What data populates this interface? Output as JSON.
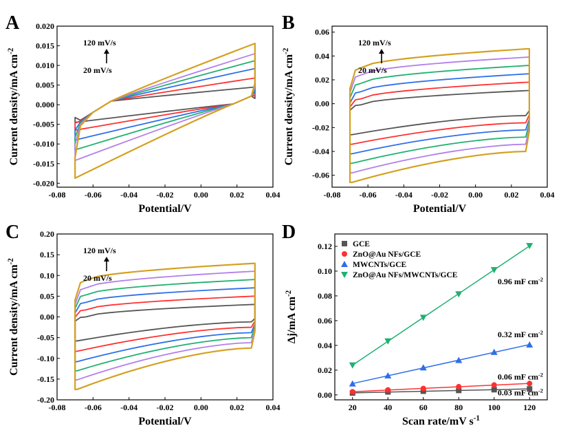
{
  "chart_data": [
    {
      "panel": "A",
      "type": "line",
      "xlabel": "Potential/V",
      "ylabel": "Current density/mA cm",
      "ylabel_sup": "-2",
      "xlim": [
        -0.08,
        0.04
      ],
      "ylim": [
        -0.021,
        0.02
      ],
      "xticks": [
        -0.08,
        -0.06,
        -0.04,
        -0.02,
        0.0,
        0.02,
        0.04
      ],
      "xtick_labels": [
        "-0.08",
        "-0.06",
        "-0.04",
        "-0.02",
        "0.00",
        "0.02",
        "0.04"
      ],
      "yticks": [
        -0.02,
        -0.015,
        -0.01,
        -0.005,
        0.0,
        0.005,
        0.01,
        0.015,
        0.02
      ],
      "ytick_labels": [
        "-0.020",
        "-0.015",
        "-0.010",
        "-0.005",
        "0.000",
        "0.005",
        "0.010",
        "0.015",
        "0.020"
      ],
      "shape": "diagonal",
      "x_range": [
        -0.07,
        0.03
      ],
      "cross_points": [
        -0.05,
        0.018
      ],
      "annotations": {
        "top": "120 mV/s",
        "bottom": "20 mV/s"
      },
      "series": [
        {
          "color": "#555555",
          "lower_left": -0.0045,
          "upper_right": 0.0045
        },
        {
          "color": "#ff3030",
          "lower_left": -0.0065,
          "upper_right": 0.0068
        },
        {
          "color": "#2e6fe8",
          "lower_left": -0.009,
          "upper_right": 0.0092
        },
        {
          "color": "#20b070",
          "lower_left": -0.0115,
          "upper_right": 0.0112
        },
        {
          "color": "#b37feb",
          "lower_left": -0.0142,
          "upper_right": 0.013
        },
        {
          "color": "#d4a020",
          "lower_left": -0.0187,
          "upper_right": 0.0156
        }
      ]
    },
    {
      "panel": "B",
      "type": "line",
      "xlabel": "Potential/V",
      "ylabel": "Current density/mA cm",
      "ylabel_sup": "-2",
      "xlim": [
        -0.08,
        0.04
      ],
      "ylim": [
        -0.07,
        0.065
      ],
      "xticks": [
        -0.08,
        -0.06,
        -0.04,
        -0.02,
        0.0,
        0.02,
        0.04
      ],
      "xtick_labels": [
        "-0.08",
        "-0.06",
        "-0.04",
        "-0.02",
        "0.00",
        "0.02",
        "0.04"
      ],
      "yticks": [
        -0.06,
        -0.04,
        -0.02,
        0.0,
        0.02,
        0.04,
        0.06
      ],
      "ytick_labels": [
        "-0.06",
        "-0.04",
        "-0.02",
        "0.00",
        "0.02",
        "0.04",
        "0.06"
      ],
      "shape": "rect",
      "x_range": [
        -0.07,
        0.03
      ],
      "annotations": {
        "top": "120 mV/s",
        "bottom": "20 mV/s"
      },
      "series": [
        {
          "color": "#555555",
          "upper": [
            -0.001,
            0.011
          ],
          "lower": [
            -0.026,
            -0.01
          ]
        },
        {
          "color": "#ff3030",
          "upper": [
            0.004,
            0.018
          ],
          "lower": [
            -0.034,
            -0.016
          ]
        },
        {
          "color": "#2e6fe8",
          "upper": [
            0.01,
            0.025
          ],
          "lower": [
            -0.042,
            -0.022
          ]
        },
        {
          "color": "#20b070",
          "upper": [
            0.017,
            0.032
          ],
          "lower": [
            -0.05,
            -0.028
          ]
        },
        {
          "color": "#b37feb",
          "upper": [
            0.024,
            0.039
          ],
          "lower": [
            -0.058,
            -0.034
          ]
        },
        {
          "color": "#d4a020",
          "upper": [
            0.03,
            0.046
          ],
          "lower": [
            -0.066,
            -0.04
          ]
        }
      ]
    },
    {
      "panel": "C",
      "type": "line",
      "xlabel": "Potential/V",
      "ylabel": "Current density/mA cm",
      "ylabel_sup": "-2",
      "xlim": [
        -0.08,
        0.04
      ],
      "ylim": [
        -0.2,
        0.2
      ],
      "xticks": [
        -0.08,
        -0.06,
        -0.04,
        -0.02,
        0.0,
        0.02,
        0.04
      ],
      "xtick_labels": [
        "-0.08",
        "-0.06",
        "-0.04",
        "-0.02",
        "0.00",
        "0.02",
        "0.04"
      ],
      "yticks": [
        -0.2,
        -0.15,
        -0.1,
        -0.05,
        0.0,
        0.05,
        0.1,
        0.15,
        0.2
      ],
      "ytick_labels": [
        "-0.20",
        "-0.15",
        "-0.10",
        "-0.05",
        "0.00",
        "0.05",
        "0.10",
        "0.15",
        "0.20"
      ],
      "shape": "rect",
      "x_range": [
        -0.07,
        0.03
      ],
      "annotations": {
        "top": "120 mV/s",
        "bottom": "20 mV/s"
      },
      "series": [
        {
          "color": "#555555",
          "upper": [
            0.0,
            0.03
          ],
          "lower": [
            -0.058,
            -0.012
          ]
        },
        {
          "color": "#ff3030",
          "upper": [
            0.017,
            0.05
          ],
          "lower": [
            -0.083,
            -0.025
          ]
        },
        {
          "color": "#2e6fe8",
          "upper": [
            0.035,
            0.07
          ],
          "lower": [
            -0.108,
            -0.038
          ]
        },
        {
          "color": "#20b070",
          "upper": [
            0.053,
            0.09
          ],
          "lower": [
            -0.13,
            -0.05
          ]
        },
        {
          "color": "#b37feb",
          "upper": [
            0.07,
            0.11
          ],
          "lower": [
            -0.152,
            -0.062
          ]
        },
        {
          "color": "#d4a020",
          "upper": [
            0.088,
            0.129
          ],
          "lower": [
            -0.175,
            -0.075
          ]
        }
      ]
    },
    {
      "panel": "D",
      "type": "scatter",
      "xlabel": "Scan rate/mV s",
      "xlabel_sup": "-1",
      "ylabel": "Δj/mA cm",
      "ylabel_sup": "-2",
      "xlim": [
        10,
        130
      ],
      "ylim": [
        -0.004,
        0.13
      ],
      "xticks": [
        20,
        40,
        60,
        80,
        100,
        120
      ],
      "xtick_labels": [
        "20",
        "40",
        "60",
        "80",
        "100",
        "120"
      ],
      "yticks": [
        0.0,
        0.02,
        0.04,
        0.06,
        0.08,
        0.1,
        0.12
      ],
      "ytick_labels": [
        "0.00",
        "0.02",
        "0.04",
        "0.06",
        "0.08",
        "0.10",
        "0.12"
      ],
      "x": [
        20,
        40,
        60,
        80,
        100,
        120
      ],
      "series": [
        {
          "name": "GCE",
          "color": "#555555",
          "marker": "square",
          "values": [
            0.0015,
            0.0024,
            0.003,
            0.0036,
            0.0042,
            0.0048
          ],
          "slope_label": "0.03 mF cm",
          "slope_sup": "-2"
        },
        {
          "name": "ZnO@Au NFs/GCE",
          "color": "#ff3030",
          "marker": "circle",
          "values": [
            0.0025,
            0.004,
            0.0052,
            0.0066,
            0.008,
            0.0092
          ],
          "slope_label": "0.06 mF cm",
          "slope_sup": "-2"
        },
        {
          "name": "MWCNTs/GCE",
          "color": "#2e6fe8",
          "marker": "triangle-up",
          "values": [
            0.009,
            0.0155,
            0.022,
            0.028,
            0.0345,
            0.0405
          ],
          "slope_label": "0.32 mF cm",
          "slope_sup": "-2"
        },
        {
          "name": "ZnO@Au NFs/MWCNTs/GCE",
          "color": "#20b070",
          "marker": "triangle-down",
          "values": [
            0.024,
            0.0435,
            0.0625,
            0.0815,
            0.101,
            0.1205
          ],
          "slope_label": "0.96 mF cm",
          "slope_sup": "-2"
        }
      ]
    }
  ]
}
